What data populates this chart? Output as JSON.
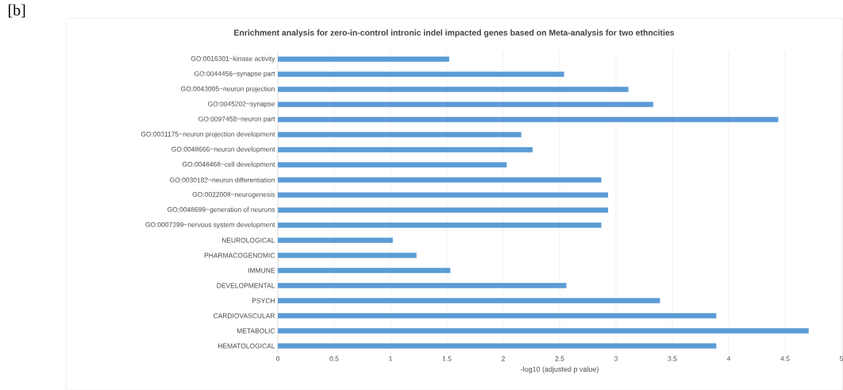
{
  "chart_data": {
    "type": "bar",
    "orientation": "horizontal",
    "title": "Enrichment analysis for zero-in-control intronic indel impacted genes based on Meta-analysis for two ethncities",
    "xlabel": "-log10 (adjusted p value)",
    "annotations": [
      "[b]"
    ],
    "categories": [
      "GO:0016301~kinase activity",
      "GO:0044456~synapse part",
      "GO:0043005~neuron projection",
      "GO:0045202~synapse",
      "GO:0097458~neuron part",
      "GO:0031175~neuron projection development",
      "GO:0048666~neuron development",
      "GO:0048468~cell development",
      "GO:0030182~neuron differentiation",
      "GO:0022008~neurogenesis",
      "GO:0048699~generation of neurons",
      "GO:0007399~nervous system development",
      "NEUROLOGICAL",
      "PHARMACOGENOMIC",
      "IMMUNE",
      "DEVELOPMENTAL",
      "PSYCH",
      "CARDIOVASCULAR",
      "METABOLIC",
      "HEMATOLOGICAL"
    ],
    "values": [
      1.52,
      2.54,
      3.11,
      3.33,
      4.44,
      2.16,
      2.26,
      2.03,
      2.87,
      2.93,
      2.93,
      2.87,
      1.02,
      1.23,
      1.53,
      2.56,
      3.39,
      3.89,
      4.71,
      3.89
    ],
    "color": "#5b9bd5",
    "xlim": [
      0,
      5
    ],
    "xticks": [
      0,
      0.5,
      1,
      1.5,
      2,
      2.5,
      3,
      3.5,
      4,
      4.5,
      5
    ],
    "grid": "x"
  }
}
